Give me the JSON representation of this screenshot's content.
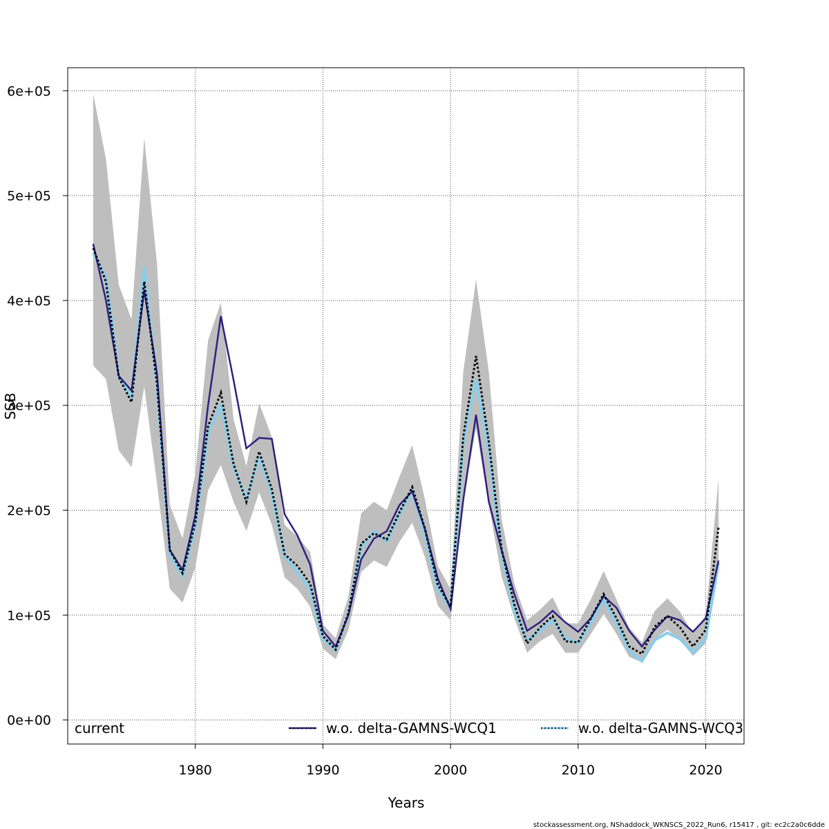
{
  "chart_data": {
    "type": "line",
    "xlabel": "Years",
    "ylabel": "SSB",
    "xlim": [
      1970,
      2023
    ],
    "ylim": [
      -23000,
      622000
    ],
    "x_ticks": [
      1980,
      1990,
      2000,
      2010,
      2020
    ],
    "y_ticks": [
      0,
      100000,
      200000,
      300000,
      400000,
      500000,
      600000
    ],
    "y_tick_labels": [
      "0e+00",
      "1e+05",
      "2e+05",
      "3e+05",
      "4e+05",
      "5e+05",
      "6e+05"
    ],
    "grid": true,
    "legend_placement": "bottom",
    "x": [
      1972,
      1973,
      1974,
      1975,
      1976,
      1977,
      1978,
      1979,
      1980,
      1981,
      1982,
      1983,
      1984,
      1985,
      1986,
      1987,
      1988,
      1989,
      1990,
      1991,
      1992,
      1993,
      1994,
      1995,
      1996,
      1997,
      1998,
      1999,
      2000,
      2001,
      2002,
      2003,
      2004,
      2005,
      2006,
      2007,
      2008,
      2009,
      2010,
      2011,
      2012,
      2013,
      2014,
      2015,
      2016,
      2017,
      2018,
      2019,
      2020,
      2021
    ],
    "band": {
      "upper": [
        597000,
        535000,
        415000,
        382000,
        555000,
        435000,
        205000,
        173000,
        235000,
        362000,
        398000,
        287000,
        242000,
        302000,
        270000,
        186000,
        175000,
        160000,
        91000,
        78000,
        118000,
        197000,
        208000,
        200000,
        232000,
        262000,
        210000,
        147000,
        125000,
        332000,
        420000,
        332000,
        192000,
        130000,
        95000,
        105000,
        117000,
        92000,
        92000,
        115000,
        142000,
        115000,
        88000,
        74000,
        104000,
        116000,
        103000,
        82000,
        100000,
        230000
      ],
      "lower": [
        338000,
        325000,
        257000,
        241000,
        318000,
        225000,
        125000,
        112000,
        145000,
        219000,
        243000,
        208000,
        180000,
        217000,
        186000,
        136000,
        125000,
        108000,
        68000,
        58000,
        86000,
        141000,
        152000,
        146000,
        170000,
        188000,
        155000,
        109000,
        95000,
        212000,
        278000,
        205000,
        137000,
        97000,
        64000,
        75000,
        82000,
        64000,
        64000,
        82000,
        101000,
        82000,
        60000,
        55000,
        77000,
        86000,
        76000,
        61000,
        73000,
        142000
      ]
    },
    "series": [
      {
        "name": "current",
        "color": "#000000",
        "style": "dashed",
        "values": [
          450000,
          418000,
          327000,
          303000,
          418000,
          320000,
          162000,
          140000,
          188000,
          280000,
          312000,
          244000,
          208000,
          256000,
          220000,
          158000,
          147000,
          130000,
          80000,
          67000,
          102000,
          168000,
          178000,
          172000,
          198000,
          222000,
          182000,
          129000,
          108000,
          270000,
          347000,
          265000,
          163000,
          110000,
          73000,
          88000,
          99000,
          75000,
          74000,
          97000,
          120000,
          97000,
          70000,
          63000,
          89000,
          99000,
          88000,
          70000,
          86000,
          184000
        ]
      },
      {
        "name": "w.o. delta-GAMNS-WCQ1",
        "color": "#2E1F7F",
        "style": "solid",
        "values": [
          454000,
          400000,
          328000,
          314000,
          410000,
          330000,
          162000,
          143000,
          195000,
          300000,
          385000,
          324000,
          259000,
          269000,
          268000,
          196000,
          176000,
          148000,
          85000,
          70000,
          100000,
          153000,
          173000,
          180000,
          205000,
          218000,
          182000,
          135000,
          106000,
          210000,
          291000,
          208000,
          162000,
          120000,
          85000,
          93000,
          104000,
          93000,
          84000,
          97000,
          118000,
          107000,
          85000,
          70000,
          86000,
          99000,
          95000,
          84000,
          97000,
          152000
        ]
      },
      {
        "name": "w.o. delta-GAMNS-WCQ3",
        "color": "#87CEEB",
        "style": "solid",
        "values": [
          445000,
          422000,
          327000,
          307000,
          432000,
          318000,
          158000,
          137000,
          185000,
          274000,
          300000,
          241000,
          210000,
          251000,
          216000,
          156000,
          141000,
          124000,
          77000,
          67000,
          101000,
          164000,
          180000,
          170000,
          196000,
          218000,
          176000,
          124000,
          107000,
          265000,
          325000,
          255000,
          158000,
          103000,
          76000,
          85000,
          95000,
          78000,
          73000,
          92000,
          115000,
          92000,
          65000,
          56000,
          76000,
          83000,
          77000,
          64000,
          78000,
          150000
        ]
      }
    ]
  },
  "footer": "stockassessment.org, NShaddock_WKNSCS_2022_Run6, r15417 , git: ec2c2a0c6dde"
}
